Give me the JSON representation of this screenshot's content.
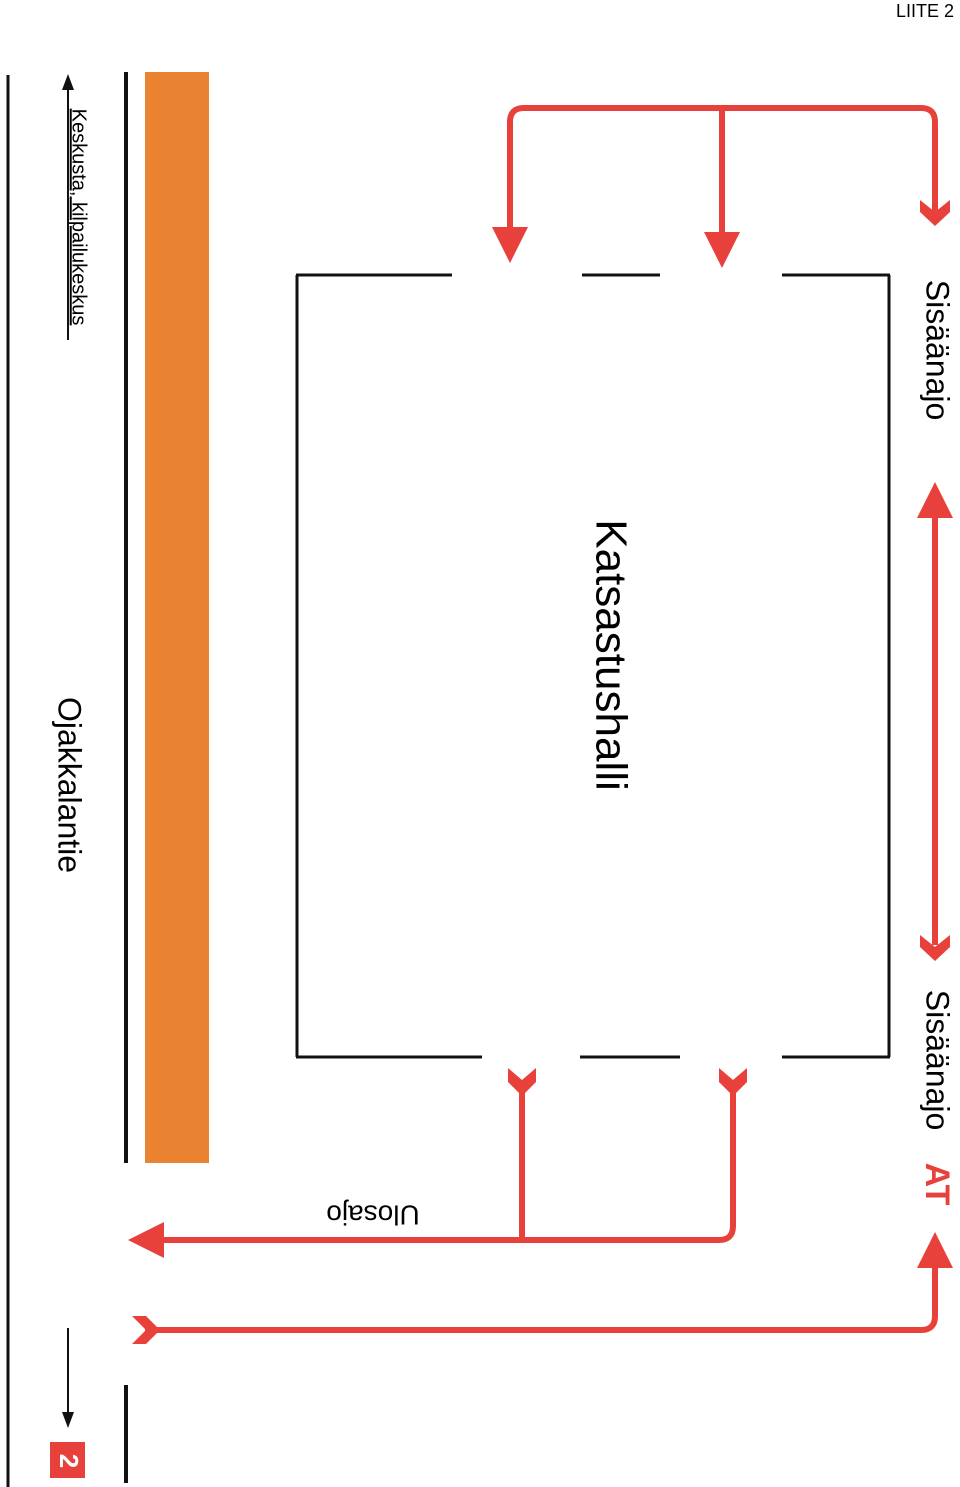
{
  "header": {
    "label": "LIITE 2"
  },
  "building": {
    "label": "Katsastushalli"
  },
  "road": {
    "name": "Ojakkalantie",
    "direction": "Keskusta, kilpailukeskus"
  },
  "entries": [
    {
      "label": "Sisäänajo"
    },
    {
      "label": "Sisäänajo"
    }
  ],
  "exit": {
    "label": "Ulosajo"
  },
  "badge": {
    "label": "AT"
  },
  "sign": {
    "label": "2"
  }
}
